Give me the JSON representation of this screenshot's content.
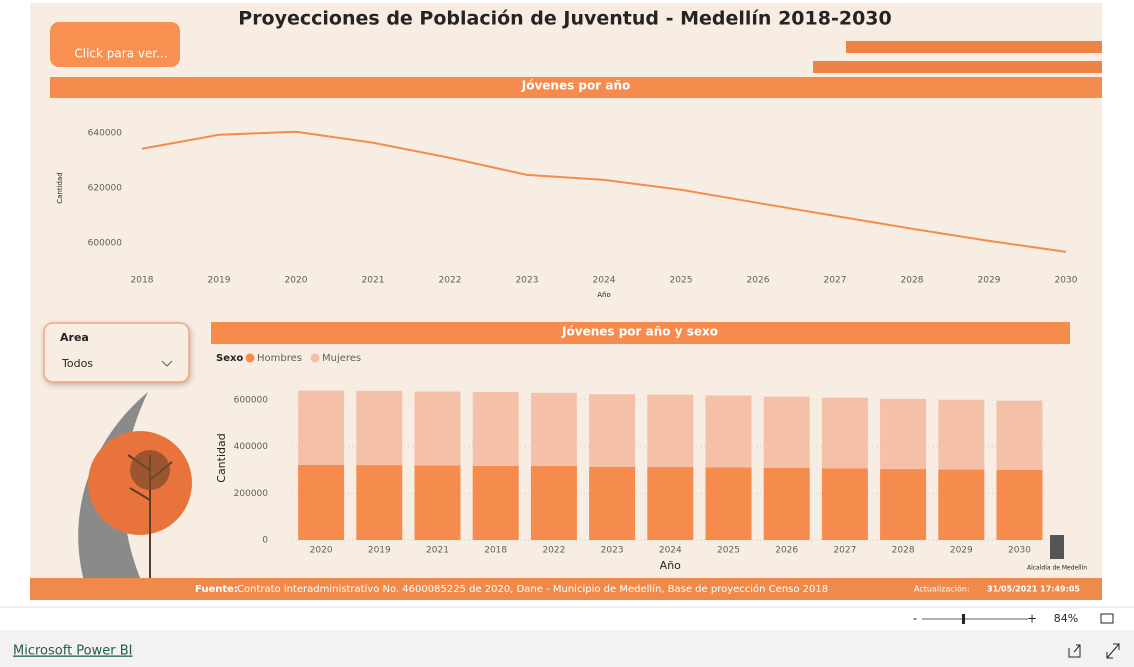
{
  "header": {
    "title": "Proyecciones de Población de Juventud - Medellín 2018-2030",
    "button": "Click para ver..."
  },
  "chart_data": [
    {
      "type": "line",
      "title": "Jóvenes por año",
      "x_label": "Año",
      "y_label": "Cantidad",
      "color": "#f58b4c",
      "grid": false,
      "categories": [
        "2018",
        "2019",
        "2020",
        "2021",
        "2022",
        "2023",
        "2024",
        "2025",
        "2026",
        "2027",
        "2028",
        "2029",
        "2030"
      ],
      "values": [
        634200,
        639300,
        640400,
        636400,
        630900,
        624700,
        622900,
        619300,
        614500,
        609800,
        605100,
        600700,
        596700
      ],
      "ylim": [
        593000,
        646500
      ],
      "yticks": [
        600000,
        620000,
        640000
      ]
    },
    {
      "type": "stacked-bar",
      "title": "Jóvenes por año y sexo",
      "x_label": "Año",
      "y_label": "Cantidad",
      "legend_title": "Sexo",
      "grid": true,
      "categories": [
        "2020",
        "2019",
        "2021",
        "2018",
        "2022",
        "2023",
        "2024",
        "2025",
        "2026",
        "2027",
        "2028",
        "2029",
        "2030"
      ],
      "series": [
        {
          "name": "Hombres",
          "color": "#f58b4c",
          "values": [
            321500,
            321000,
            319500,
            318000,
            317000,
            314000,
            313000,
            311000,
            309000,
            306500,
            304000,
            302000,
            300000
          ]
        },
        {
          "name": "Mujeres",
          "color": "#f4c1a8",
          "values": [
            318900,
            318300,
            316900,
            316200,
            313900,
            310700,
            309900,
            308300,
            305500,
            303300,
            301100,
            298700,
            296700
          ]
        }
      ],
      "ylim": [
        0,
        660000
      ],
      "yticks": [
        0,
        200000,
        400000,
        600000
      ]
    }
  ],
  "slicer": {
    "label": "Area",
    "value": "Todos"
  },
  "footer": {
    "source_label": "Fuente:",
    "source": "Contrato interadministrativo No. 4600085225 de 2020, Dane - Municipio de Medellín, Base de proyección Censo 2018",
    "update_label": "Actualización:",
    "update_value": "31/05/2021 17:49:05",
    "logo": "Alcaldía de Medellín"
  },
  "viewer": {
    "zoom_out": "-",
    "zoom_in": "+",
    "zoom": "84%",
    "brand": "Microsoft Power BI"
  }
}
